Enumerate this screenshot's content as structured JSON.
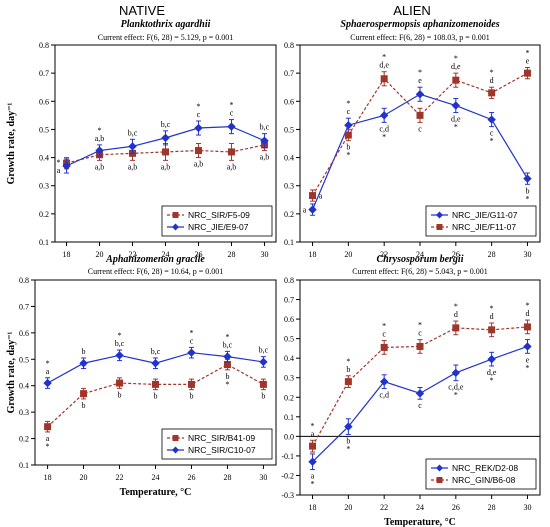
{
  "headers": {
    "left": "NATIVE",
    "right": "ALIEN"
  },
  "colors": {
    "blue": "#2233cc",
    "red": "#a0362b",
    "text": "#000000"
  },
  "shared": {
    "ylabel": "Growth rate, day⁻¹",
    "xlabel": "Temperature, °C"
  },
  "chart_data": [
    {
      "type": "line",
      "title": "Planktothrix agardhii",
      "subtitle": "Current effect: F(6, 28) = 5.129, p = 0.001",
      "x": [
        18,
        20,
        22,
        24,
        26,
        28,
        30
      ],
      "ylim": [
        0.1,
        0.8
      ],
      "yticks": [
        0.1,
        0.2,
        0.3,
        0.4,
        0.5,
        0.6,
        0.7,
        0.8
      ],
      "xticks": [
        18,
        20,
        22,
        24,
        26,
        28,
        30
      ],
      "legend_position": "bottom-right",
      "series": [
        {
          "name": "NRC_SIR/F5-09",
          "color": "red",
          "style": "dashed",
          "marker": "square",
          "values": [
            0.38,
            0.41,
            0.415,
            0.42,
            0.425,
            0.42,
            0.445
          ],
          "err": [
            0.02,
            0.02,
            0.025,
            0.03,
            0.025,
            0.03,
            0.02
          ],
          "labels": [
            "",
            "a,b",
            "a,b",
            "a,b",
            "a,b",
            "a,b",
            "a,b"
          ],
          "label_pos": [
            "below",
            "below",
            "below",
            "below",
            "below",
            "below",
            "below"
          ]
        },
        {
          "name": "NRC_JIE/E9-07",
          "color": "blue",
          "style": "solid",
          "marker": "diamond",
          "values": [
            0.37,
            0.425,
            0.44,
            0.47,
            0.505,
            0.51,
            0.46
          ],
          "err": [
            0.025,
            0.02,
            0.025,
            0.025,
            0.025,
            0.025,
            0.025
          ],
          "labels": [
            "*\na",
            "*\na,b",
            "b,c",
            "b,c",
            "*\nc",
            "*\nc",
            "b,c"
          ],
          "label_pos": [
            "left",
            "above",
            "above",
            "above",
            "above",
            "above",
            "above"
          ]
        }
      ]
    },
    {
      "type": "line",
      "title": "Sphaerospermopsis aphanizomenoides",
      "subtitle": "Current effect: F(6, 28) = 108.03, p = 0.001",
      "x": [
        18,
        20,
        22,
        24,
        26,
        28,
        30
      ],
      "ylim": [
        0.1,
        0.8
      ],
      "yticks": [
        0.1,
        0.2,
        0.3,
        0.4,
        0.5,
        0.6,
        0.7,
        0.8
      ],
      "xticks": [
        18,
        20,
        22,
        24,
        26,
        28,
        30
      ],
      "legend_position": "bottom-right",
      "series": [
        {
          "name": "NRC_JIE/G11-07",
          "color": "blue",
          "style": "solid",
          "marker": "diamond",
          "values": [
            0.215,
            0.515,
            0.55,
            0.625,
            0.585,
            0.535,
            0.325
          ],
          "err": [
            0.02,
            0.025,
            0.025,
            0.025,
            0.025,
            0.025,
            0.02
          ],
          "labels": [
            "a",
            "*\nc",
            "c,d\n*",
            "*\ne",
            "d,e\n*",
            "c\n*",
            "b\n*"
          ],
          "label_pos": [
            "left",
            "above",
            "below",
            "above",
            "below",
            "below",
            "below"
          ]
        },
        {
          "name": "NRC_JIE/F11-07",
          "color": "red",
          "style": "dashed",
          "marker": "square",
          "values": [
            0.265,
            0.48,
            0.68,
            0.55,
            0.675,
            0.63,
            0.7
          ],
          "err": [
            0.02,
            0.02,
            0.025,
            0.025,
            0.025,
            0.02,
            0.02
          ],
          "labels": [
            "a",
            "b\n*",
            "*\nd,e",
            "c",
            "*\nd,e",
            "*\nd",
            "*\ne"
          ],
          "label_pos": [
            "right",
            "below",
            "above",
            "below",
            "above",
            "above",
            "above"
          ]
        }
      ]
    },
    {
      "type": "line",
      "title": "Aphanizomenon gracile",
      "subtitle": "Current effect: F(6, 28) = 10.64, p = 0.001",
      "x": [
        18,
        20,
        22,
        24,
        26,
        28,
        30
      ],
      "ylim": [
        0.1,
        0.8
      ],
      "yticks": [
        0.1,
        0.2,
        0.3,
        0.4,
        0.5,
        0.6,
        0.7,
        0.8
      ],
      "xticks": [
        18,
        20,
        22,
        24,
        26,
        28,
        30
      ],
      "legend_position": "bottom-right",
      "series": [
        {
          "name": "NRC_SIR/B41-09",
          "color": "red",
          "style": "dashed",
          "marker": "square",
          "values": [
            0.245,
            0.37,
            0.41,
            0.405,
            0.405,
            0.48,
            0.405
          ],
          "err": [
            0.02,
            0.02,
            0.02,
            0.02,
            0.02,
            0.02,
            0.02
          ],
          "labels": [
            "a\n*",
            "b",
            "b",
            "b",
            "b",
            "b\n*",
            "b"
          ],
          "label_pos": [
            "below",
            "below",
            "below",
            "below",
            "below",
            "below",
            "below"
          ]
        },
        {
          "name": "NRC_SIR/C10-07",
          "color": "blue",
          "style": "solid",
          "marker": "diamond",
          "values": [
            0.41,
            0.485,
            0.515,
            0.485,
            0.525,
            0.51,
            0.49
          ],
          "err": [
            0.02,
            0.02,
            0.02,
            0.02,
            0.02,
            0.02,
            0.02
          ],
          "labels": [
            "*\na",
            "b",
            "*\nb,c",
            "b,c",
            "*\nc",
            "*\nb,c",
            "b,c"
          ],
          "label_pos": [
            "above",
            "above",
            "above",
            "above",
            "above",
            "above",
            "above"
          ]
        }
      ]
    },
    {
      "type": "line",
      "title": "Chrysosporum bergii",
      "subtitle": "Current effect: F(6, 28) = 5.043, p = 0.001",
      "x": [
        18,
        20,
        22,
        24,
        26,
        28,
        30
      ],
      "ylim": [
        -0.3,
        0.8
      ],
      "yticks": [
        -0.3,
        -0.2,
        -0.1,
        0.0,
        0.1,
        0.2,
        0.3,
        0.4,
        0.5,
        0.6,
        0.7,
        0.8
      ],
      "xticks": [
        18,
        20,
        22,
        24,
        26,
        28,
        30
      ],
      "legend_position": "bottom-right",
      "series": [
        {
          "name": "NRC_REK/D2-08",
          "color": "blue",
          "style": "solid",
          "marker": "diamond",
          "values": [
            -0.13,
            0.05,
            0.28,
            0.22,
            0.325,
            0.395,
            0.46
          ],
          "err": [
            0.04,
            0.04,
            0.035,
            0.03,
            0.04,
            0.035,
            0.035
          ],
          "labels": [
            "a\n*",
            "b\n*",
            "c,d",
            "c",
            "c,d,e\n*",
            "d,e\n*",
            "e\n*"
          ],
          "label_pos": [
            "below",
            "below",
            "below",
            "below",
            "below",
            "below",
            "below"
          ]
        },
        {
          "name": "NRC_GIN/B6-08",
          "color": "red",
          "style": "dashed",
          "marker": "square",
          "values": [
            -0.05,
            0.28,
            0.455,
            0.46,
            0.555,
            0.545,
            0.56
          ],
          "err": [
            0.03,
            0.03,
            0.035,
            0.035,
            0.035,
            0.035,
            0.035
          ],
          "labels": [
            "*\na",
            "*\nb",
            "*\nc",
            "*\nc",
            "*\nd",
            "*\nd",
            "*\nd"
          ],
          "label_pos": [
            "above",
            "above",
            "above",
            "above",
            "above",
            "above",
            "above"
          ]
        }
      ]
    }
  ]
}
